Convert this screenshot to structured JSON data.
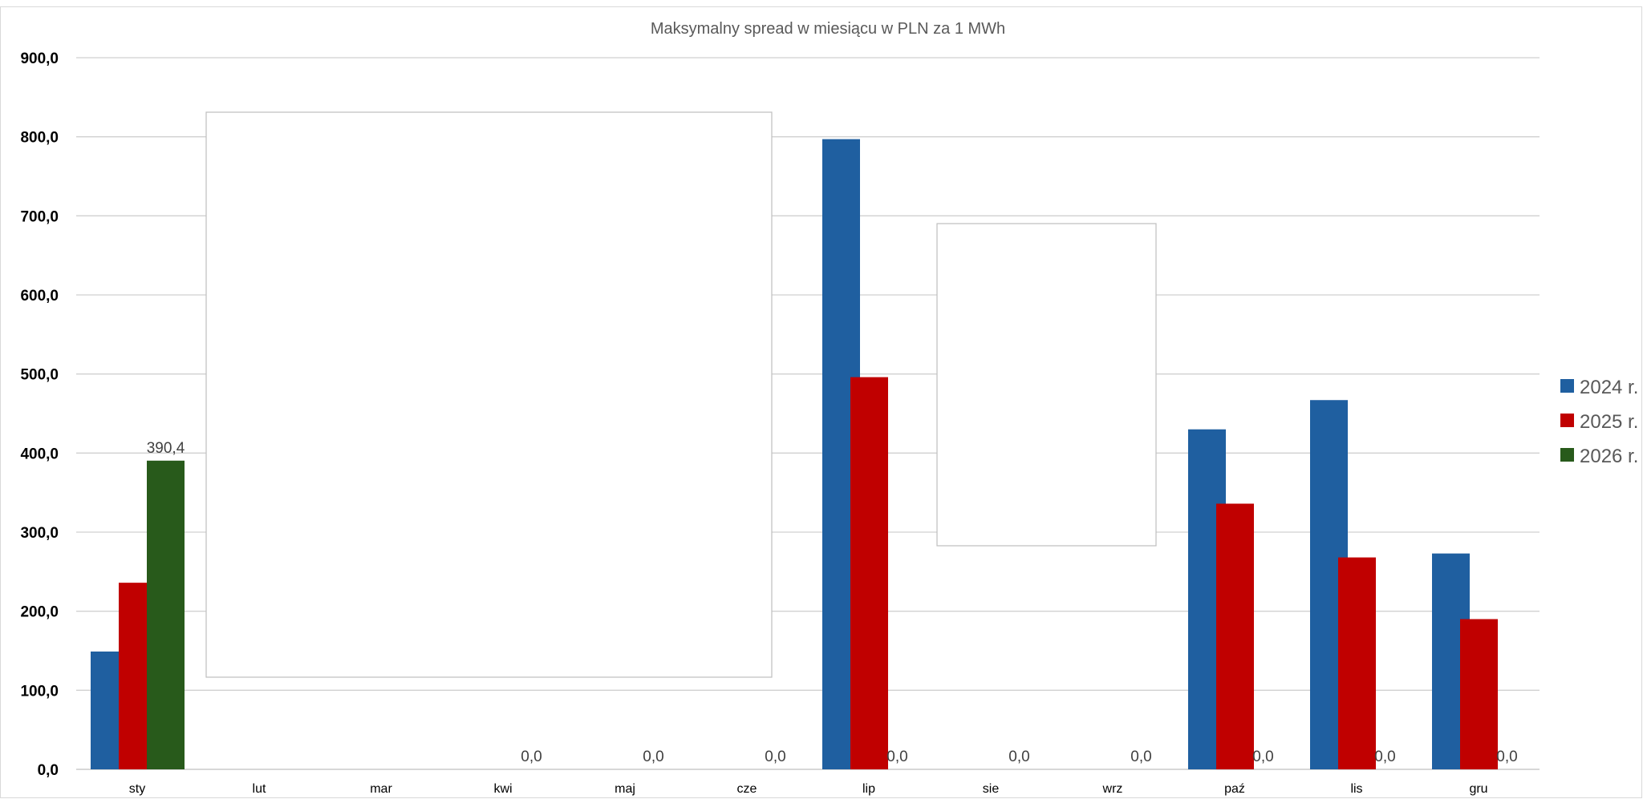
{
  "chart_data": {
    "type": "bar",
    "title": "Maksymalny spread w miesiącu w PLN za 1 MWh",
    "categories": [
      "sty",
      "lut",
      "mar",
      "kwi",
      "maj",
      "cze",
      "lip",
      "sie",
      "wrz",
      "paź",
      "lis",
      "gru"
    ],
    "series": [
      {
        "name": "2024 r.",
        "color": "#1F5FA0",
        "values": [
          149,
          null,
          null,
          null,
          null,
          null,
          797,
          null,
          null,
          430,
          467,
          273
        ]
      },
      {
        "name": "2025 r.",
        "color": "#C00000",
        "values": [
          236,
          null,
          null,
          null,
          null,
          null,
          496,
          null,
          null,
          336,
          268,
          190
        ]
      },
      {
        "name": "2026 r.",
        "color": "#285A1B",
        "values": [
          390.4,
          null,
          null,
          0,
          0,
          0,
          0,
          0,
          0,
          0,
          0,
          0
        ]
      }
    ],
    "data_labels": [
      "390,4",
      null,
      null,
      "0,0",
      "0,0",
      "0,0",
      "0,0",
      "0,0",
      "0,0",
      "0,0",
      "0,0",
      "0,0"
    ],
    "y_ticks": [
      "0,0",
      "100,0",
      "200,0",
      "300,0",
      "400,0",
      "500,0",
      "600,0",
      "700,0",
      "800,0",
      "900,0"
    ],
    "ylim": [
      0,
      900
    ],
    "grid": true,
    "legend_position": "right"
  }
}
